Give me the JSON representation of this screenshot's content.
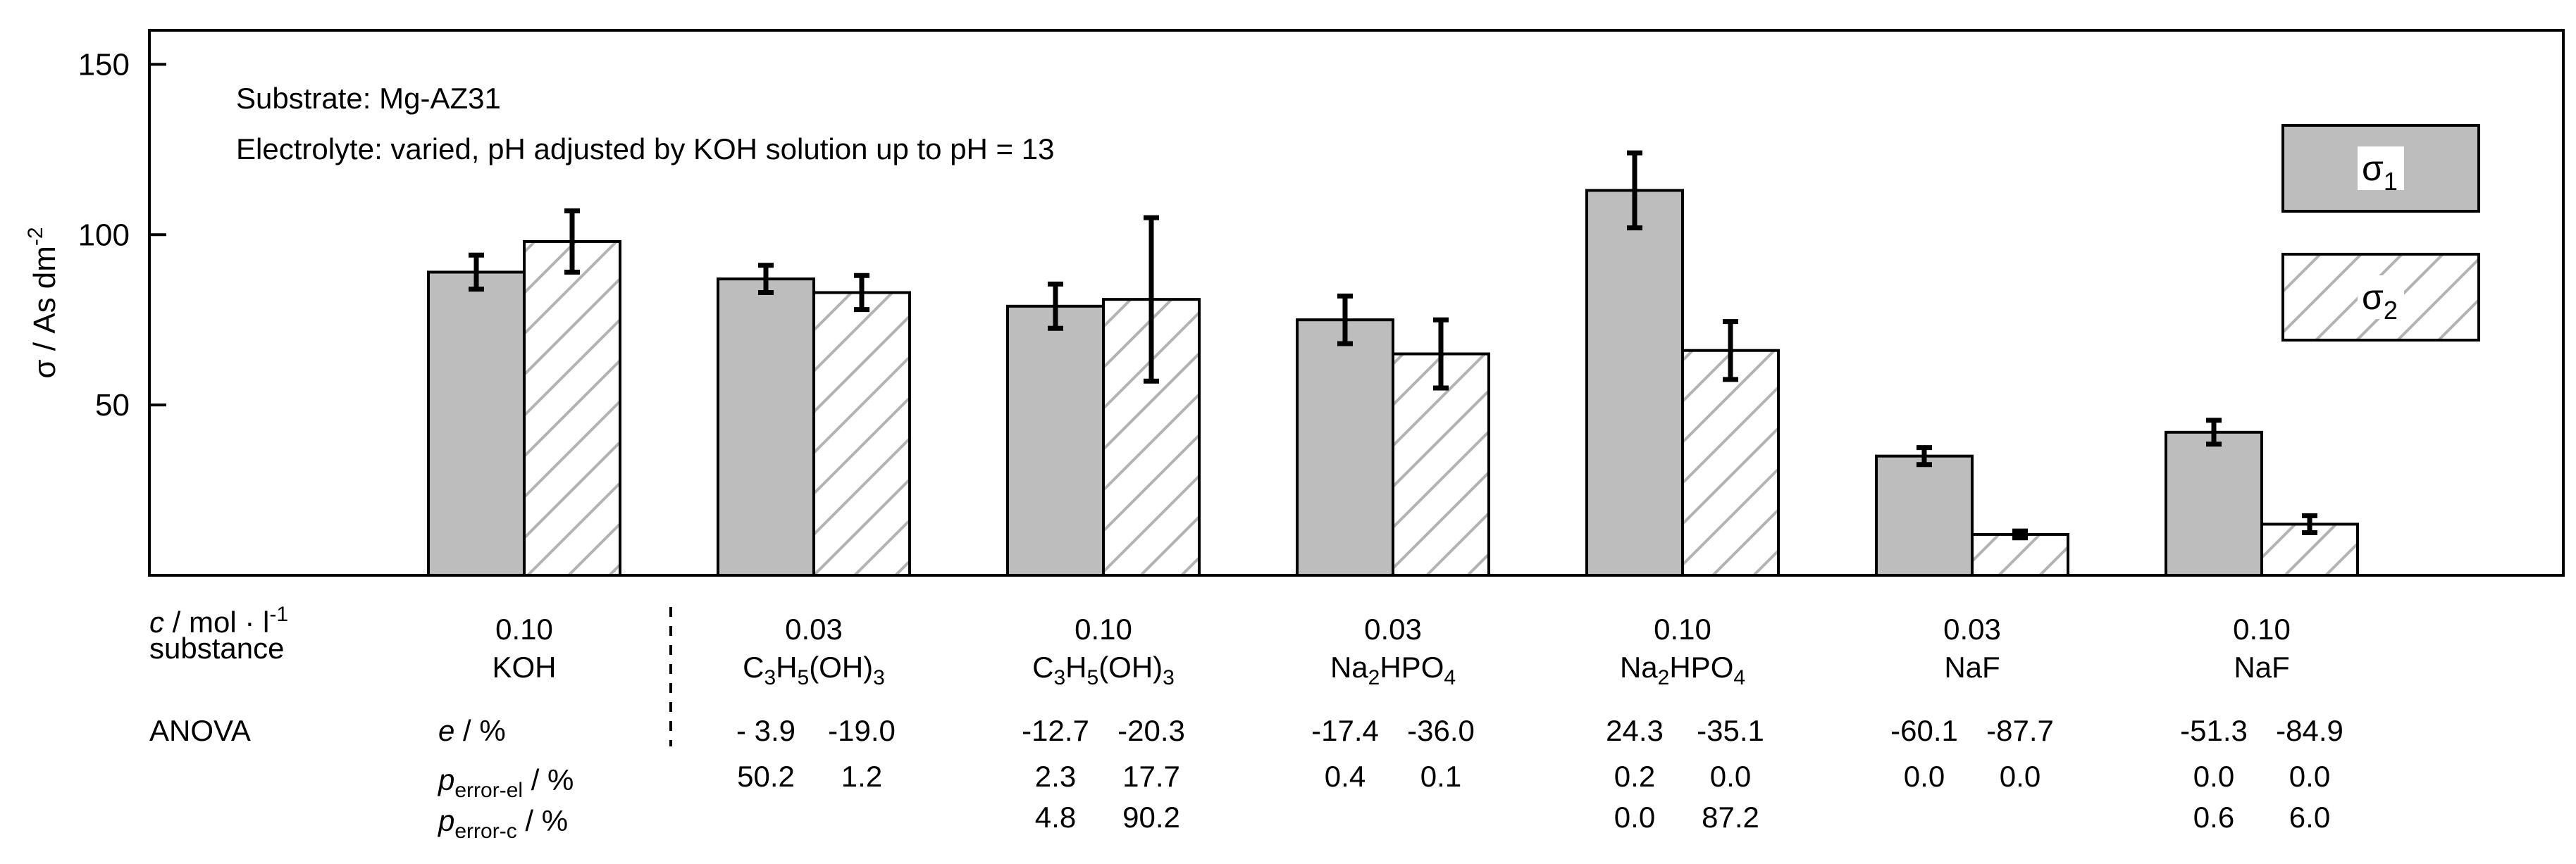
{
  "colors": {
    "sigma1_fill": "#bdbdbd",
    "sigma2_fill": "#ffffff",
    "hatch": "#b3b3b3",
    "ink": "#000000"
  },
  "chart_data": {
    "type": "bar",
    "ylabel": "σ  / As dm",
    "ylabel_sup": "-2",
    "ylim": [
      0,
      160
    ],
    "yticks": [
      50,
      100,
      150
    ],
    "ytick_labels": [
      "50",
      "100",
      "150"
    ],
    "annotations": {
      "substrate": "Substrate:   Mg-AZ31",
      "electrolyte": "Electrolyte: varied, pH adjusted by KOH solution up to pH = 13"
    },
    "legend": {
      "position": "top-right",
      "entries": [
        {
          "base": "σ",
          "sub": "1",
          "style": "solid gray"
        },
        {
          "base": "σ",
          "sub": "2",
          "style": "hatched"
        }
      ]
    },
    "categories": [
      {
        "conc": "0.10",
        "substance": [
          {
            "t": "KOH"
          }
        ]
      },
      {
        "conc": "0.03",
        "substance": [
          {
            "t": "C"
          },
          {
            "t": "3",
            "sub": true
          },
          {
            "t": "H"
          },
          {
            "t": "5",
            "sub": true
          },
          {
            "t": "(OH)"
          },
          {
            "t": "3",
            "sub": true
          }
        ]
      },
      {
        "conc": "0.10",
        "substance": [
          {
            "t": "C"
          },
          {
            "t": "3",
            "sub": true
          },
          {
            "t": "H"
          },
          {
            "t": "5",
            "sub": true
          },
          {
            "t": "(OH)"
          },
          {
            "t": "3",
            "sub": true
          }
        ]
      },
      {
        "conc": "0.03",
        "substance": [
          {
            "t": "Na"
          },
          {
            "t": "2",
            "sub": true
          },
          {
            "t": "HPO"
          },
          {
            "t": "4",
            "sub": true
          }
        ]
      },
      {
        "conc": "0.10",
        "substance": [
          {
            "t": "Na"
          },
          {
            "t": "2",
            "sub": true
          },
          {
            "t": "HPO"
          },
          {
            "t": "4",
            "sub": true
          }
        ]
      },
      {
        "conc": "0.03",
        "substance": [
          {
            "t": "NaF"
          }
        ]
      },
      {
        "conc": "0.10",
        "substance": [
          {
            "t": "NaF"
          }
        ]
      }
    ],
    "series": [
      {
        "name": "σ1",
        "values": [
          89,
          87,
          79,
          75,
          113,
          35,
          42
        ],
        "errors": [
          5,
          4,
          6.5,
          7,
          11,
          2.5,
          3.5
        ]
      },
      {
        "name": "σ2",
        "values": [
          98,
          83,
          81,
          65,
          66,
          12,
          15
        ],
        "errors": [
          9,
          5,
          24,
          10,
          8.5,
          1,
          2.5
        ]
      }
    ],
    "table": {
      "row_conc_label": {
        "italic": "c",
        "rest": " / mol · l",
        "sup": "-1"
      },
      "row_substance_label": "substance",
      "anova_label": "ANOVA",
      "e_label": {
        "italic": "e",
        "rest": "  / %"
      },
      "p_el_label": {
        "italic": "p",
        "sub": "error-el",
        "rest": " / %"
      },
      "p_c_label": {
        "italic": "p",
        "sub": "error-c",
        "rest": "  / %"
      },
      "e": [
        null,
        [
          "- 3.9",
          "-19.0"
        ],
        [
          "-12.7",
          "-20.3"
        ],
        [
          "-17.4",
          "-36.0"
        ],
        [
          "24.3",
          "-35.1"
        ],
        [
          "-60.1",
          "-87.7"
        ],
        [
          "-51.3",
          "-84.9"
        ]
      ],
      "p_el": [
        null,
        [
          "50.2",
          "1.2"
        ],
        [
          "2.3",
          "17.7"
        ],
        [
          "0.4",
          "0.1"
        ],
        [
          "0.2",
          "0.0"
        ],
        [
          "0.0",
          "0.0"
        ],
        [
          "0.0",
          "0.0"
        ]
      ],
      "p_c": [
        null,
        null,
        [
          "4.8",
          "90.2"
        ],
        null,
        [
          "0.0",
          "87.2"
        ],
        null,
        [
          "0.6",
          "6.0"
        ]
      ]
    }
  }
}
